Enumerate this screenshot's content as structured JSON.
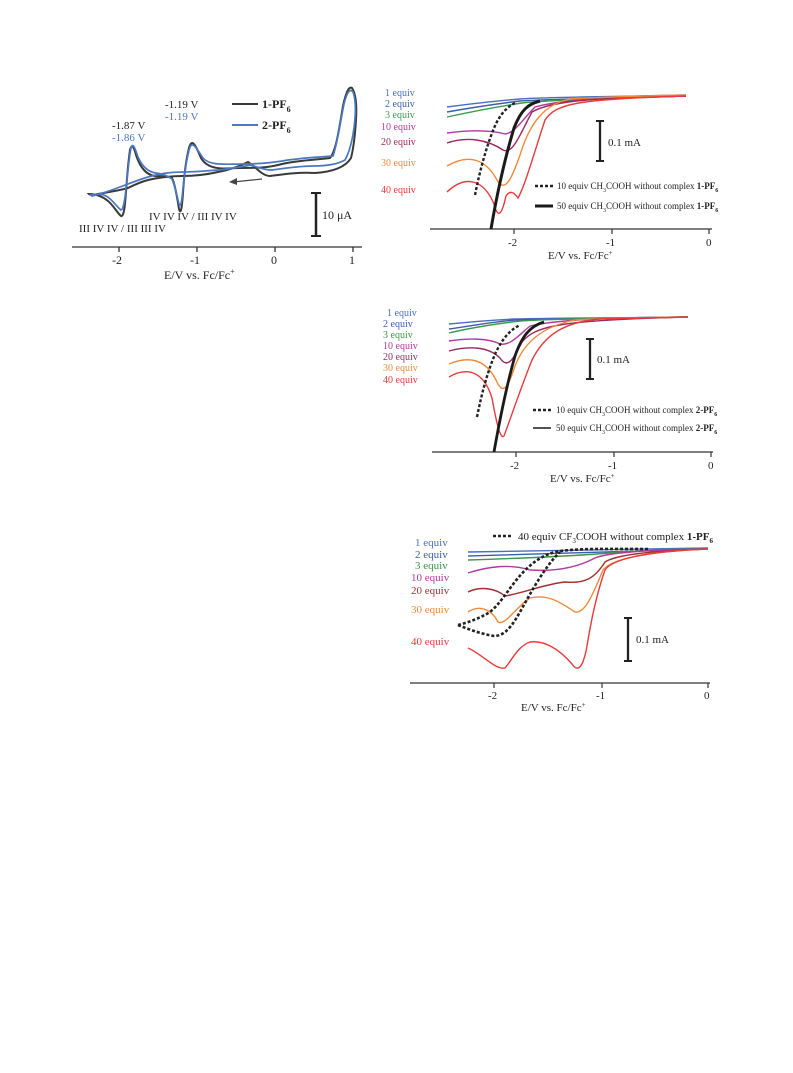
{
  "colors": {
    "axis": "#333333",
    "c1": "#3a3a3a",
    "c2": "#4a78c0",
    "equiv": [
      "#4a6ec0",
      "#3c5ea8",
      "#3a9a4a",
      "#b03aa0",
      "#9a2a5a",
      "#f08a3a",
      "#e83a3a"
    ],
    "acid_curves": [
      "#4a6ec0",
      "#3c5ea8",
      "#3a9a4a",
      "#b03aa0",
      "#a03030",
      "#f08a3a",
      "#e83a3a"
    ]
  },
  "panels": {
    "cv": {
      "xticks": [
        "-2",
        "-1",
        "0",
        "1"
      ],
      "xlabel": "E/V vs. Fc/Fc",
      "xlabel_sup": "+",
      "pot_black_1": "-1.87 V",
      "pot_blue_1": "-1.86 V",
      "pot_black_2": "-1.19 V",
      "pot_blue_2": "-1.19 V",
      "legend_1": "1-PF",
      "legend_1_sub": "6",
      "legend_2": "2-PF",
      "legend_2_sub": "6",
      "assign_1": "III IV IV / III III IV",
      "assign_2": "IV IV IV / III IV IV",
      "scale": "10 μA"
    },
    "p1": {
      "xticks": [
        "-2",
        "-1",
        "0"
      ],
      "xlabel": "E/V vs. Fc/Fc",
      "xlabel_sup": "+",
      "equiv": [
        "1 equiv",
        "2 equiv",
        "3 equiv",
        "10 equiv",
        "20 equiv",
        "30 equiv",
        "40 equiv"
      ],
      "scale": "0.1 mA",
      "leg_dashed": "10 equiv CH",
      "leg_dashed_b": "COOH without complex ",
      "leg_dashed_c": "1-PF",
      "leg_solid": "50 equiv CH",
      "leg_solid_b": "COOH without complex ",
      "leg_solid_c": "1-PF",
      "sub3": "3",
      "sub6": "6"
    },
    "p2": {
      "xticks": [
        "-2",
        "-1",
        "0"
      ],
      "xlabel": "E/V vs. Fc/Fc",
      "xlabel_sup": "+",
      "equiv": [
        "1 equiv",
        "2 equiv",
        "3 equiv",
        "10 equiv",
        "20 equiv",
        "30 equiv",
        "40 equiv"
      ],
      "scale": "0.1 mA",
      "leg_dashed": "10 equiv CH",
      "leg_dashed_b": "COOH without complex ",
      "leg_dashed_c": "2-PF",
      "leg_solid": "50 equiv CH",
      "leg_solid_b": "COOH without complex ",
      "leg_solid_c": "2-PF",
      "sub3": "3",
      "sub6": "6"
    },
    "p3": {
      "xticks": [
        "-2",
        "-1",
        "0"
      ],
      "xlabel": "E/V vs. Fc/Fc",
      "xlabel_sup": "+",
      "equiv": [
        "1 equiv",
        "2 equiv",
        "3 equiv",
        "10 equiv",
        "20 equiv",
        "30 equiv",
        "40 equiv"
      ],
      "scale": "0.1 mA",
      "leg_dashed": "40 equiv CF",
      "leg_dashed_b": "COOH without complex ",
      "leg_dashed_c": "1-PF",
      "sub3": "3",
      "sub6": "6"
    }
  },
  "chart_data": [
    {
      "type": "line",
      "title": "",
      "xlabel": "E/V vs. Fc/Fc+",
      "xlim": [
        -2.4,
        1.1
      ],
      "series": [
        {
          "name": "1-PF6",
          "x": [
            -2.35,
            -1.87,
            -1.55,
            -1.19,
            -0.5,
            0.5,
            0.95,
            1.0
          ],
          "y": [
            0,
            -4,
            0,
            -4,
            -0.5,
            0,
            9,
            8
          ]
        },
        {
          "name": "2-PF6",
          "x": [
            -2.35,
            -1.86,
            -1.55,
            -1.19,
            -0.5,
            0.5,
            0.92,
            1.0
          ],
          "y": [
            0,
            -3.5,
            0,
            -3.5,
            -0.4,
            0,
            8,
            7
          ]
        }
      ]
    },
    {
      "type": "line",
      "xlabel": "E/V vs. Fc/Fc+",
      "xlim": [
        -2.8,
        0
      ],
      "series": [
        {
          "name": "1 equiv",
          "x": [
            -2.7,
            -2.0,
            -1.0,
            -0.2
          ],
          "y": [
            0.02,
            0.0,
            0.0,
            0.0
          ]
        },
        {
          "name": "10 equiv",
          "x": [
            -2.7,
            -2.1,
            -1.9,
            -1.0
          ],
          "y": [
            -0.15,
            -0.18,
            -0.05,
            0.0
          ]
        },
        {
          "name": "40 equiv",
          "x": [
            -2.7,
            -2.2,
            -1.93,
            -1.7,
            -1.0
          ],
          "y": [
            -0.38,
            -0.55,
            -0.44,
            -0.1,
            0.0
          ]
        }
      ]
    },
    {
      "type": "line",
      "xlabel": "E/V vs. Fc/Fc+",
      "xlim": [
        -2.8,
        0
      ],
      "series": [
        {
          "name": "1 equiv",
          "x": [
            -2.7,
            -2.0,
            -1.0,
            -0.2
          ],
          "y": [
            0.02,
            0.0,
            0.0,
            0.0
          ]
        },
        {
          "name": "40 equiv",
          "x": [
            -2.7,
            -2.15,
            -1.8,
            -1.0
          ],
          "y": [
            -0.22,
            -0.55,
            -0.1,
            0.0
          ]
        }
      ]
    },
    {
      "type": "line",
      "xlabel": "E/V vs. Fc/Fc+",
      "xlim": [
        -2.6,
        0
      ],
      "series": [
        {
          "name": "1 equiv",
          "x": [
            -2.3,
            -1.5,
            -1.0,
            0.0
          ],
          "y": [
            0.0,
            0.0,
            0.0,
            0.0
          ]
        },
        {
          "name": "40 equiv",
          "x": [
            -2.3,
            -1.92,
            -1.5,
            -1.2,
            -0.9
          ],
          "y": [
            -0.3,
            -0.45,
            -0.3,
            -0.5,
            0.0
          ]
        }
      ]
    }
  ]
}
